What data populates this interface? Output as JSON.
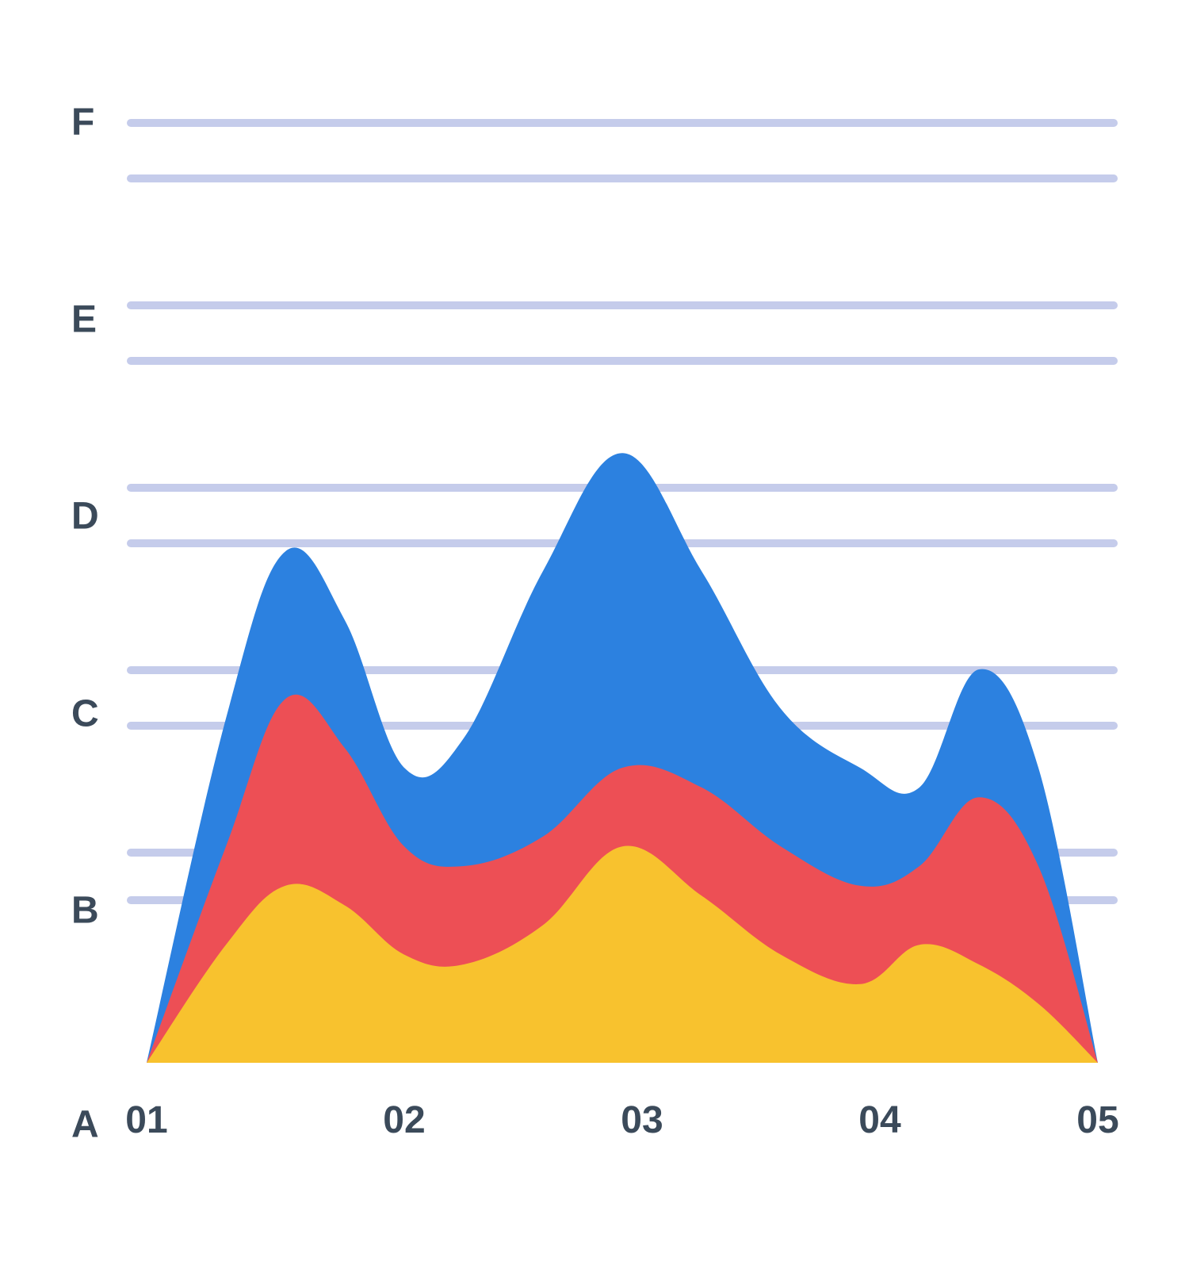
{
  "chart": {
    "type": "area",
    "background_color": "#ffffff",
    "grid_color": "#c5cceb",
    "label_color": "#3b4a5a",
    "label_fontsize": 48,
    "label_fontweight": 700,
    "y_axis": {
      "labels": [
        "A",
        "B",
        "C",
        "D",
        "E",
        "F"
      ],
      "positions_pct": [
        100,
        78.2,
        59.7,
        41.1,
        22.6,
        4.0
      ],
      "grid_major_pct": [
        4.0,
        22.6,
        41.1,
        59.7,
        78.2
      ],
      "grid_minor_pct": [
        9.7,
        28.2,
        46.8,
        65.3,
        83.1
      ]
    },
    "x_axis": {
      "labels": [
        "01",
        "02",
        "03",
        "04",
        "05"
      ],
      "positions_pct": [
        2,
        28,
        52,
        76,
        98
      ]
    },
    "series": [
      {
        "name": "blue",
        "color": "#2c81e0",
        "points": [
          {
            "x": 0.02,
            "y": 0.0
          },
          {
            "x": 0.1,
            "y": 0.35
          },
          {
            "x": 0.16,
            "y": 0.52
          },
          {
            "x": 0.22,
            "y": 0.45
          },
          {
            "x": 0.28,
            "y": 0.3
          },
          {
            "x": 0.34,
            "y": 0.33
          },
          {
            "x": 0.42,
            "y": 0.5
          },
          {
            "x": 0.5,
            "y": 0.62
          },
          {
            "x": 0.58,
            "y": 0.5
          },
          {
            "x": 0.66,
            "y": 0.36
          },
          {
            "x": 0.74,
            "y": 0.3
          },
          {
            "x": 0.8,
            "y": 0.28
          },
          {
            "x": 0.86,
            "y": 0.4
          },
          {
            "x": 0.92,
            "y": 0.3
          },
          {
            "x": 0.98,
            "y": 0.0
          }
        ]
      },
      {
        "name": "red",
        "color": "#ed4f55",
        "points": [
          {
            "x": 0.02,
            "y": 0.0
          },
          {
            "x": 0.1,
            "y": 0.22
          },
          {
            "x": 0.16,
            "y": 0.37
          },
          {
            "x": 0.22,
            "y": 0.32
          },
          {
            "x": 0.28,
            "y": 0.22
          },
          {
            "x": 0.34,
            "y": 0.2
          },
          {
            "x": 0.42,
            "y": 0.23
          },
          {
            "x": 0.5,
            "y": 0.3
          },
          {
            "x": 0.58,
            "y": 0.28
          },
          {
            "x": 0.66,
            "y": 0.22
          },
          {
            "x": 0.74,
            "y": 0.18
          },
          {
            "x": 0.8,
            "y": 0.2
          },
          {
            "x": 0.86,
            "y": 0.27
          },
          {
            "x": 0.92,
            "y": 0.2
          },
          {
            "x": 0.98,
            "y": 0.0
          }
        ]
      },
      {
        "name": "yellow",
        "color": "#f8c22e",
        "points": [
          {
            "x": 0.02,
            "y": 0.0
          },
          {
            "x": 0.1,
            "y": 0.12
          },
          {
            "x": 0.16,
            "y": 0.18
          },
          {
            "x": 0.22,
            "y": 0.16
          },
          {
            "x": 0.28,
            "y": 0.11
          },
          {
            "x": 0.34,
            "y": 0.1
          },
          {
            "x": 0.42,
            "y": 0.14
          },
          {
            "x": 0.5,
            "y": 0.22
          },
          {
            "x": 0.58,
            "y": 0.17
          },
          {
            "x": 0.66,
            "y": 0.11
          },
          {
            "x": 0.74,
            "y": 0.08
          },
          {
            "x": 0.8,
            "y": 0.12
          },
          {
            "x": 0.86,
            "y": 0.1
          },
          {
            "x": 0.92,
            "y": 0.06
          },
          {
            "x": 0.98,
            "y": 0.0
          }
        ]
      }
    ]
  }
}
